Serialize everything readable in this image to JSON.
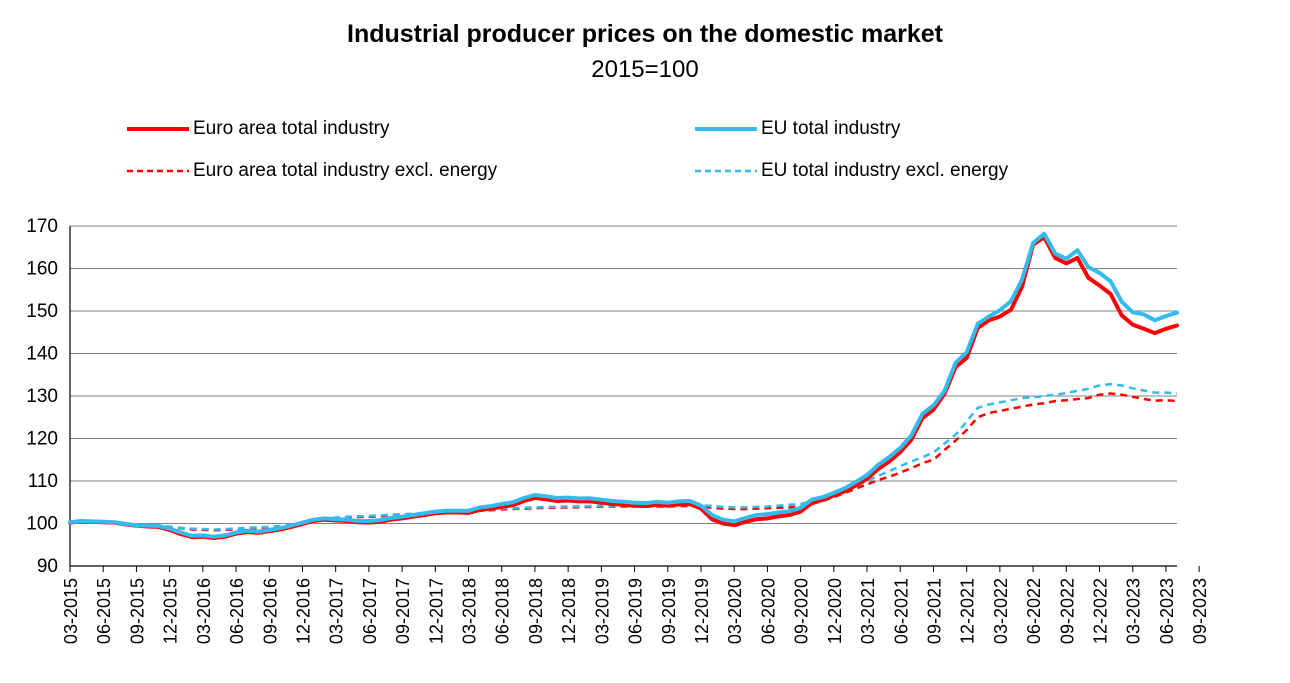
{
  "chart_data": {
    "type": "line",
    "title": "Industrial producer prices on the domestic market",
    "subtitle": "2015=100",
    "xlabel": "",
    "ylabel": "",
    "ylim": [
      90,
      170
    ],
    "yticks": [
      90,
      100,
      110,
      120,
      130,
      140,
      150,
      160,
      170
    ],
    "grid": true,
    "legend_position": "top",
    "x_tick_labels": [
      "03-2015",
      "06-2015",
      "09-2015",
      "12-2015",
      "03-2016",
      "06-2016",
      "09-2016",
      "12-2016",
      "03-2017",
      "06-2017",
      "09-2017",
      "12-2017",
      "03-2018",
      "06-2018",
      "09-2018",
      "12-2018",
      "03-2019",
      "06-2019",
      "09-2019",
      "12-2019",
      "03-2020",
      "06-2020",
      "09-2020",
      "12-2020",
      "03-2021",
      "06-2021",
      "09-2021",
      "12-2021",
      "03-2022",
      "06-2022",
      "09-2022",
      "12-2022",
      "03-2023",
      "06-2023",
      "09-2023"
    ],
    "series": [
      {
        "name": "Euro area total industry",
        "color": "#ff0000",
        "style": "solid",
        "values": [
          100.2,
          100.5,
          100.4,
          100.3,
          100.2,
          99.8,
          99.5,
          99.3,
          99.2,
          98.5,
          97.5,
          96.8,
          96.9,
          96.6,
          96.9,
          97.6,
          98.0,
          97.8,
          98.2,
          98.6,
          99.2,
          99.9,
          100.6,
          100.9,
          100.7,
          100.6,
          100.3,
          100.2,
          100.4,
          100.9,
          101.2,
          101.6,
          102.0,
          102.4,
          102.6,
          102.6,
          102.5,
          103.2,
          103.5,
          103.9,
          104.3,
          105.3,
          106.0,
          105.7,
          105.3,
          105.4,
          105.2,
          105.2,
          104.9,
          104.6,
          104.4,
          104.2,
          104.1,
          104.4,
          104.2,
          104.5,
          104.6,
          103.5,
          101.0,
          100.0,
          99.6,
          100.4,
          101.0,
          101.2,
          101.7,
          102.0,
          102.8,
          104.8,
          105.6,
          106.6,
          107.6,
          109.0,
          110.5,
          112.8,
          114.6,
          116.8,
          119.7,
          124.8,
          126.8,
          130.5,
          136.8,
          139.0,
          146.0,
          147.8,
          148.7,
          150.3,
          155.7,
          165.6,
          167.4,
          162.5,
          161.2,
          162.5,
          157.8,
          156.0,
          154.0,
          149.0,
          146.8,
          145.8,
          144.8,
          145.8,
          146.6
        ]
      },
      {
        "name": "EU total industry",
        "color": "#33bbee",
        "style": "solid",
        "values": [
          100.3,
          100.6,
          100.5,
          100.4,
          100.3,
          99.9,
          99.6,
          99.5,
          99.4,
          98.8,
          97.9,
          97.1,
          97.2,
          96.9,
          97.2,
          97.9,
          98.3,
          98.1,
          98.5,
          98.9,
          99.5,
          100.2,
          100.9,
          101.2,
          101.0,
          100.9,
          100.6,
          100.6,
          100.8,
          101.3,
          101.6,
          102.0,
          102.4,
          102.8,
          103.0,
          103.0,
          103.0,
          103.8,
          104.1,
          104.6,
          105.0,
          106.0,
          106.7,
          106.4,
          106.0,
          106.1,
          105.9,
          105.9,
          105.6,
          105.3,
          105.1,
          104.9,
          104.8,
          105.1,
          104.9,
          105.2,
          105.3,
          104.2,
          102.0,
          100.9,
          100.5,
          101.3,
          102.0,
          102.2,
          102.6,
          102.9,
          103.7,
          105.6,
          106.2,
          107.2,
          108.3,
          109.8,
          111.4,
          113.8,
          115.6,
          117.8,
          120.7,
          125.8,
          127.8,
          131.2,
          137.8,
          140.3,
          147.0,
          148.7,
          150.2,
          152.3,
          157.4,
          166.0,
          168.2,
          163.5,
          162.3,
          164.3,
          160.3,
          159.0,
          157.0,
          152.2,
          149.7,
          149.2,
          147.8,
          148.8,
          149.6
        ]
      },
      {
        "name": "Euro area total industry excl. energy",
        "color": "#ff0000",
        "style": "dashed",
        "values": [
          100.2,
          100.3,
          100.3,
          100.2,
          100.0,
          99.8,
          99.6,
          99.5,
          99.4,
          99.2,
          98.9,
          98.6,
          98.5,
          98.4,
          98.5,
          98.6,
          98.8,
          98.9,
          99.0,
          99.2,
          99.5,
          100.0,
          100.6,
          101.0,
          101.2,
          101.4,
          101.5,
          101.6,
          101.7,
          101.9,
          102.0,
          102.1,
          102.3,
          102.5,
          102.7,
          102.8,
          102.9,
          103.0,
          103.1,
          103.3,
          103.4,
          103.5,
          103.6,
          103.7,
          103.7,
          103.8,
          103.8,
          103.9,
          104.0,
          104.0,
          104.0,
          104.0,
          104.0,
          104.0,
          104.0,
          104.1,
          104.1,
          104.0,
          103.7,
          103.5,
          103.4,
          103.4,
          103.5,
          103.6,
          103.7,
          103.8,
          104.0,
          104.6,
          105.3,
          106.2,
          107.2,
          108.2,
          109.2,
          110.2,
          111.0,
          112.0,
          113.0,
          114.2,
          115.0,
          117.3,
          119.5,
          122.0,
          125.0,
          126.0,
          126.5,
          127.0,
          127.5,
          128.0,
          128.3,
          128.8,
          129.0,
          129.3,
          129.5,
          130.3,
          130.6,
          130.3,
          129.8,
          129.3,
          128.9,
          129.0,
          128.8
        ]
      },
      {
        "name": "EU total industry excl. energy",
        "color": "#33bbee",
        "style": "dashed",
        "values": [
          100.2,
          100.3,
          100.3,
          100.2,
          100.1,
          99.9,
          99.7,
          99.6,
          99.5,
          99.3,
          99.0,
          98.8,
          98.7,
          98.6,
          98.7,
          98.8,
          99.0,
          99.1,
          99.2,
          99.4,
          99.7,
          100.2,
          100.8,
          101.2,
          101.4,
          101.6,
          101.7,
          101.8,
          101.9,
          102.1,
          102.2,
          102.3,
          102.5,
          102.7,
          102.9,
          103.0,
          103.1,
          103.2,
          103.3,
          103.5,
          103.6,
          103.7,
          103.8,
          103.9,
          103.9,
          104.0,
          104.0,
          104.1,
          104.2,
          104.2,
          104.2,
          104.2,
          104.2,
          104.2,
          104.2,
          104.3,
          104.4,
          104.3,
          104.1,
          103.9,
          103.8,
          103.8,
          103.9,
          104.0,
          104.2,
          104.4,
          104.6,
          105.2,
          105.9,
          106.8,
          107.8,
          108.8,
          110.0,
          111.2,
          112.3,
          113.5,
          114.6,
          115.6,
          116.7,
          118.8,
          120.9,
          124.0,
          127.2,
          128.0,
          128.5,
          129.0,
          129.5,
          129.7,
          130.0,
          130.3,
          130.7,
          131.2,
          131.7,
          132.5,
          132.8,
          132.5,
          131.8,
          131.3,
          130.8,
          130.8,
          130.6
        ]
      }
    ]
  }
}
